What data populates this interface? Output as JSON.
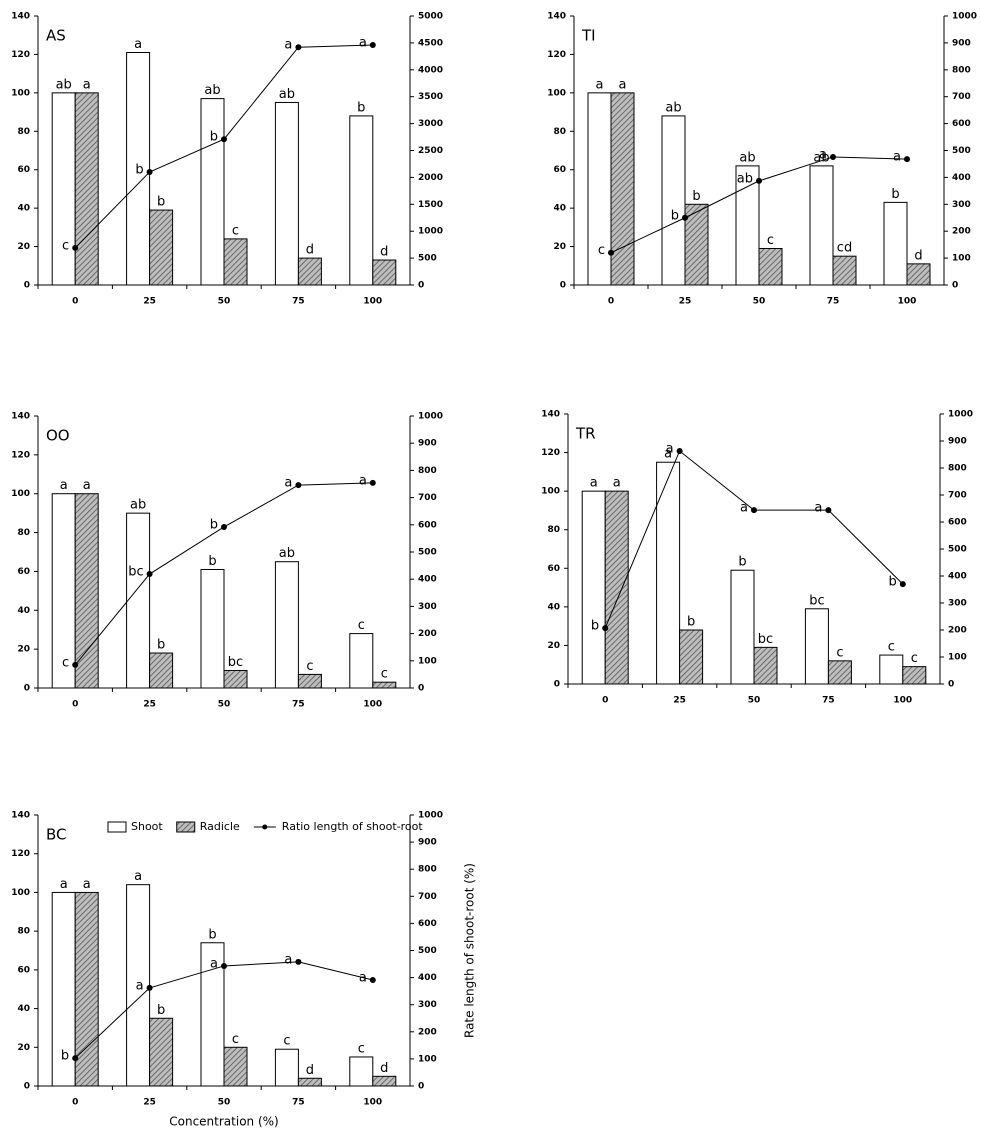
{
  "chart_data": [
    {
      "type": "bar",
      "title": "AS",
      "categories": [
        "0",
        "25",
        "50",
        "75",
        "100"
      ],
      "series": [
        {
          "color": "#ffffff",
          "values": [
            100,
            121,
            97,
            95,
            88
          ],
          "letters": [
            "ab",
            "a",
            "ab",
            "ab",
            "b"
          ]
        },
        {
          "color": "#8c8c8c",
          "values": [
            100,
            39,
            24,
            14,
            13
          ],
          "letters": [
            "a",
            "b",
            "c",
            "d",
            "d"
          ]
        },
        {
          "type": "line",
          "axis": "y2",
          "color": "#000000",
          "values": [
            690,
            2100,
            2710,
            4420,
            4460
          ],
          "letters": [
            "c",
            "b",
            "b",
            "a",
            "a"
          ]
        }
      ],
      "ylim": [
        0,
        140
      ],
      "yticks": [
        0,
        20,
        40,
        60,
        80,
        100,
        120,
        140
      ],
      "y2lim": [
        0,
        5000
      ],
      "y2ticks": [
        0,
        500,
        1000,
        1500,
        2000,
        2500,
        3000,
        3500,
        4000,
        4500,
        5000
      ]
    },
    {
      "type": "bar",
      "title": "TI",
      "categories": [
        "0",
        "25",
        "50",
        "75",
        "100"
      ],
      "series": [
        {
          "color": "#ffffff",
          "values": [
            100,
            88,
            62,
            62,
            43
          ],
          "letters": [
            "a",
            "ab",
            "ab",
            "ab",
            "b"
          ]
        },
        {
          "color": "#8c8c8c",
          "values": [
            100,
            42,
            19,
            15,
            11
          ],
          "letters": [
            "a",
            "b",
            "c",
            "cd",
            "d"
          ]
        },
        {
          "type": "line",
          "axis": "y2",
          "color": "#000000",
          "values": [
            120,
            250,
            387,
            476,
            468
          ],
          "letters": [
            "c",
            "b",
            "ab",
            "a",
            "a"
          ]
        }
      ],
      "ylim": [
        0,
        140
      ],
      "yticks": [
        0,
        20,
        40,
        60,
        80,
        100,
        120,
        140
      ],
      "y2lim": [
        0,
        1000
      ],
      "y2ticks": [
        0,
        100,
        200,
        300,
        400,
        500,
        600,
        700,
        800,
        900,
        1000
      ]
    },
    {
      "type": "bar",
      "title": "OO",
      "categories": [
        "0",
        "25",
        "50",
        "75",
        "100"
      ],
      "series": [
        {
          "color": "#ffffff",
          "values": [
            100,
            90,
            61,
            65,
            28
          ],
          "letters": [
            "a",
            "ab",
            "b",
            "ab",
            "c"
          ]
        },
        {
          "color": "#8c8c8c",
          "values": [
            100,
            18,
            9,
            7,
            3
          ],
          "letters": [
            "a",
            "b",
            "bc",
            "c",
            "c"
          ]
        },
        {
          "type": "line",
          "axis": "y2",
          "color": "#000000",
          "values": [
            85,
            419,
            592,
            746,
            754
          ],
          "letters": [
            "c",
            "bc",
            "b",
            "a",
            "a"
          ]
        }
      ],
      "ylim": [
        0,
        140
      ],
      "yticks": [
        0,
        20,
        40,
        60,
        80,
        100,
        120,
        140
      ],
      "y2lim": [
        0,
        1000
      ],
      "y2ticks": [
        0,
        100,
        200,
        300,
        400,
        500,
        600,
        700,
        800,
        900,
        1000
      ]
    },
    {
      "type": "bar",
      "title": "TR",
      "categories": [
        "0",
        "25",
        "50",
        "75",
        "100"
      ],
      "series": [
        {
          "color": "#ffffff",
          "values": [
            100,
            115,
            59,
            39,
            15
          ],
          "letters": [
            "a",
            "a",
            "b",
            "bc",
            "c"
          ]
        },
        {
          "color": "#8c8c8c",
          "values": [
            100,
            28,
            19,
            12,
            9
          ],
          "letters": [
            "a",
            "b",
            "bc",
            "c",
            "c"
          ]
        },
        {
          "type": "line",
          "axis": "y2",
          "color": "#000000",
          "values": [
            207,
            863,
            644,
            644,
            370
          ],
          "letters": [
            "b",
            "a",
            "a",
            "a",
            "b"
          ]
        }
      ],
      "ylim": [
        0,
        140
      ],
      "yticks": [
        0,
        20,
        40,
        60,
        80,
        100,
        120,
        140
      ],
      "y2lim": [
        0,
        1000
      ],
      "y2ticks": [
        0,
        100,
        200,
        300,
        400,
        500,
        600,
        700,
        800,
        900,
        1000
      ]
    },
    {
      "type": "bar",
      "title": "BC",
      "categories": [
        "0",
        "25",
        "50",
        "75",
        "100"
      ],
      "series": [
        {
          "name": "Shoot",
          "color": "#ffffff",
          "values": [
            100,
            104,
            74,
            19,
            15
          ],
          "letters": [
            "a",
            "a",
            "b",
            "c",
            "c"
          ]
        },
        {
          "name": "Radicle",
          "color": "#8c8c8c",
          "values": [
            100,
            35,
            20,
            4,
            5
          ],
          "letters": [
            "a",
            "b",
            "c",
            "d",
            "d"
          ]
        },
        {
          "name": "Ratio length of shoot-root",
          "type": "line",
          "axis": "y2",
          "color": "#000000",
          "values": [
            103,
            362,
            443,
            458,
            391
          ],
          "letters": [
            "b",
            "a",
            "a",
            "a",
            "a"
          ]
        }
      ],
      "ylim": [
        0,
        140
      ],
      "yticks": [
        0,
        20,
        40,
        60,
        80,
        100,
        120,
        140
      ],
      "y2lim": [
        0,
        1000
      ],
      "y2ticks": [
        0,
        100,
        200,
        300,
        400,
        500,
        600,
        700,
        800,
        900,
        1000
      ],
      "x_label": "Concentration (%)",
      "y2_label": "Rate length of shoot-root (%)",
      "legend": "top"
    }
  ]
}
